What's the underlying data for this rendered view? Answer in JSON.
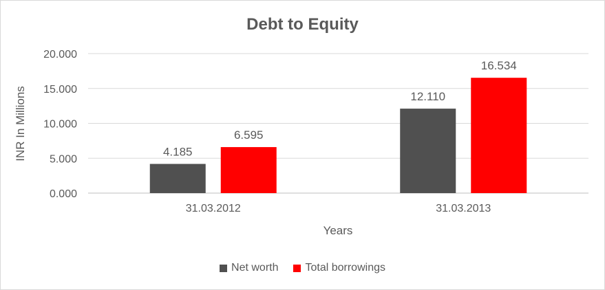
{
  "chart_data": {
    "type": "bar",
    "title": "Debt to Equity",
    "xlabel": "Years",
    "ylabel": "INR In Millions",
    "categories": [
      "31.03.2012",
      "31.03.2013"
    ],
    "series": [
      {
        "name": "Net worth",
        "values": [
          4.185,
          12.11
        ],
        "labels": [
          "4.185",
          "12.110"
        ],
        "color": "#505050"
      },
      {
        "name": "Total borrowings",
        "values": [
          6.595,
          16.534
        ],
        "labels": [
          "6.595",
          "16.534"
        ],
        "color": "#FF0000"
      }
    ],
    "ylim": [
      0,
      20
    ],
    "yticks": [
      "0.000",
      "5.000",
      "10.000",
      "15.000",
      "20.000"
    ],
    "grid": true,
    "legend": "bottom"
  }
}
